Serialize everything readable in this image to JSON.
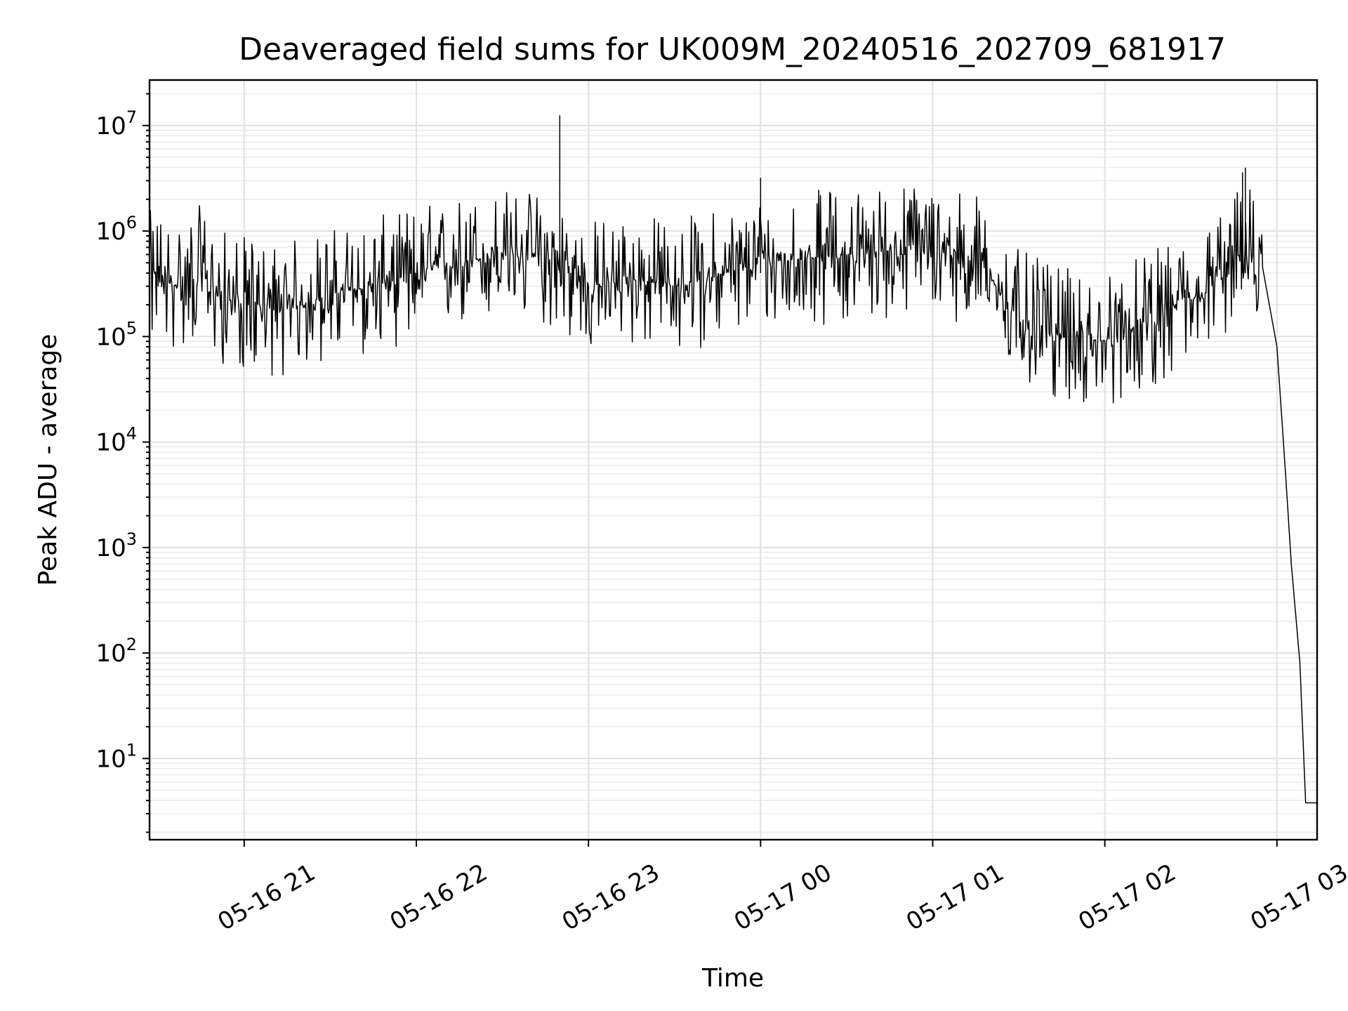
{
  "chart_data": {
    "type": "line",
    "title": "Deaveraged field sums for UK009M_20240516_202709_681917",
    "xlabel": "Time",
    "ylabel": "Peak ADU - average",
    "yscale": "log",
    "grid": true,
    "xlim": [
      "2024-05-16 20:27",
      "2024-05-17 03:14"
    ],
    "ylim": [
      1.7,
      27000000
    ],
    "x_ticks": [
      "05-16 21",
      "05-16 22",
      "05-16 23",
      "05-17 00",
      "05-17 01",
      "05-17 02",
      "05-17 03"
    ],
    "y_ticks": [
      {
        "base": "10",
        "exp": "1",
        "value": 10
      },
      {
        "base": "10",
        "exp": "2",
        "value": 100
      },
      {
        "base": "10",
        "exp": "3",
        "value": 1000
      },
      {
        "base": "10",
        "exp": "4",
        "value": 10000
      },
      {
        "base": "10",
        "exp": "5",
        "value": 100000
      },
      {
        "base": "10",
        "exp": "6",
        "value": 1000000
      },
      {
        "base": "10",
        "exp": "7",
        "value": 10000000
      }
    ],
    "series": [
      {
        "color": "#000000",
        "x": [
          "2024-05-16 20:27",
          "2024-05-16 20:30",
          "2024-05-16 20:35",
          "2024-05-16 20:40",
          "2024-05-16 20:45",
          "2024-05-16 20:50",
          "2024-05-16 21:00",
          "2024-05-16 21:15",
          "2024-05-16 21:30",
          "2024-05-16 21:45",
          "2024-05-16 22:00",
          "2024-05-16 22:15",
          "2024-05-16 22:30",
          "2024-05-16 22:45",
          "2024-05-16 22:50",
          "2024-05-16 22:55",
          "2024-05-16 23:00",
          "2024-05-16 23:15",
          "2024-05-16 23:30",
          "2024-05-16 23:45",
          "2024-05-17 00:00",
          "2024-05-17 00:15",
          "2024-05-17 00:30",
          "2024-05-17 00:45",
          "2024-05-17 01:00",
          "2024-05-17 01:15",
          "2024-05-17 01:30",
          "2024-05-17 01:45",
          "2024-05-17 02:00",
          "2024-05-17 02:15",
          "2024-05-17 02:30",
          "2024-05-17 02:35",
          "2024-05-17 02:40",
          "2024-05-17 02:45",
          "2024-05-17 02:50",
          "2024-05-17 02:55",
          "2024-05-17 03:00",
          "2024-05-17 03:03",
          "2024-05-17 03:05",
          "2024-05-17 03:08",
          "2024-05-17 03:10",
          "2024-05-17 03:14"
        ],
        "y": [
          350000,
          400000,
          300000,
          350000,
          400000,
          250000,
          200000,
          180000,
          250000,
          300000,
          400000,
          500000,
          600000,
          550000,
          500000,
          350000,
          300000,
          350000,
          300000,
          380000,
          500000,
          550000,
          600000,
          650000,
          700000,
          550000,
          150000,
          100000,
          90000,
          140000,
          220000,
          250000,
          400000,
          550000,
          650000,
          450000,
          80000,
          5000,
          700,
          80,
          3.8,
          3.8
        ]
      }
    ]
  }
}
